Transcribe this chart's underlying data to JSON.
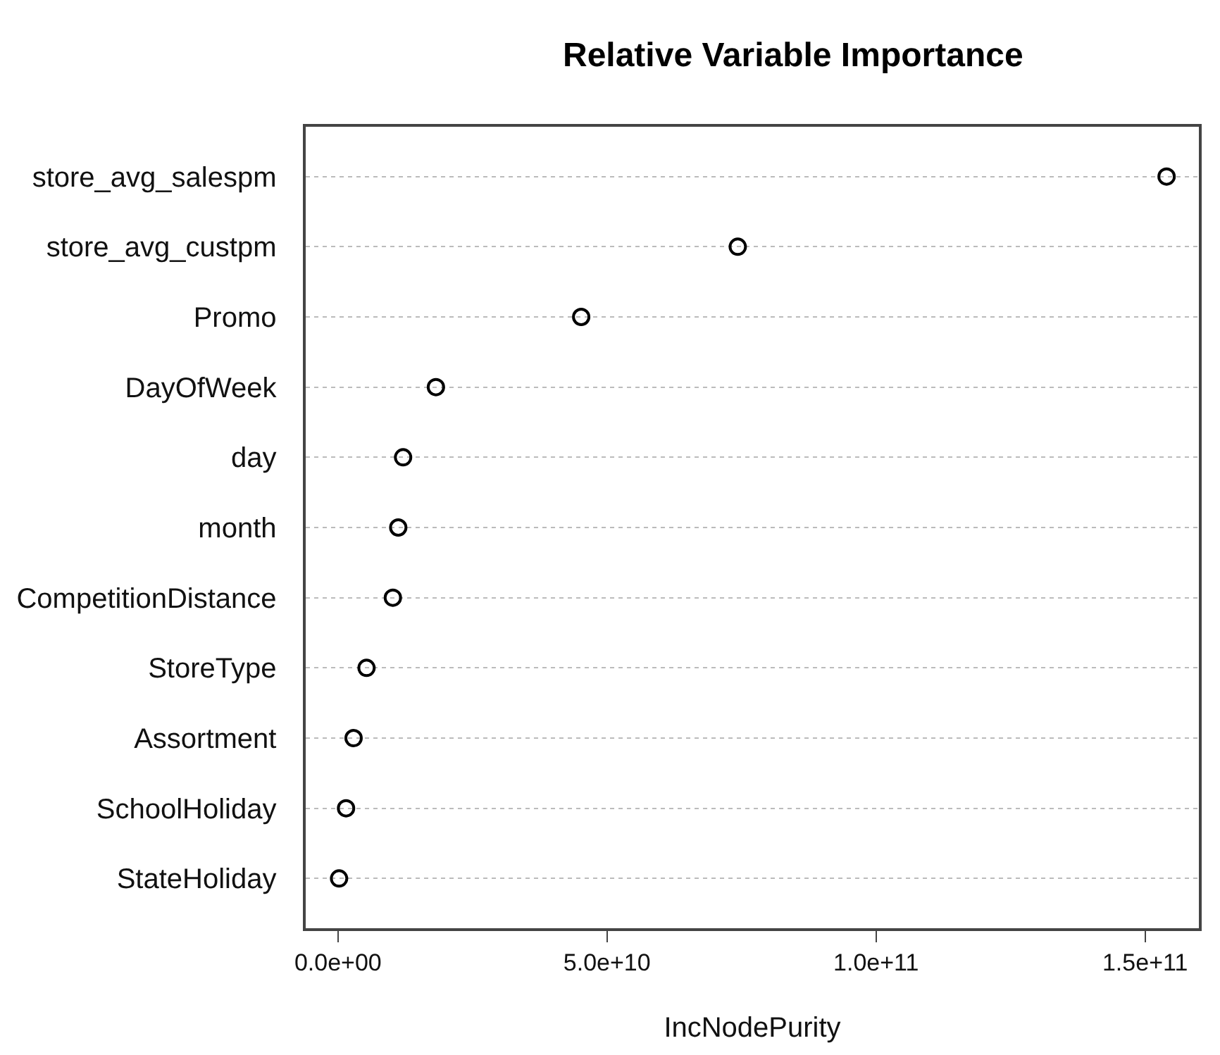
{
  "chart_data": {
    "type": "scatter",
    "title": "Relative Variable Importance",
    "xlabel": "IncNodePurity",
    "categories": [
      "store_avg_salespm",
      "store_avg_custpm",
      "Promo",
      "DayOfWeek",
      "day",
      "month",
      "CompetitionDistance",
      "StoreType",
      "Assortment",
      "SchoolHoliday",
      "StateHoliday"
    ],
    "orientation": "horizontal",
    "values": [
      154000000000,
      74300000000,
      45200000000,
      18200000000,
      12100000000,
      11200000000,
      10200000000,
      5300000000,
      2900000000,
      1500000000,
      200000000
    ],
    "color": "#000000",
    "marker": "circle",
    "grid": "y",
    "legend": false,
    "xlim": [
      -6000000000,
      160000000000
    ],
    "xticks": [
      {
        "value": 0,
        "label": "0.0e+00"
      },
      {
        "value": 50000000000,
        "label": "5.0e+10"
      },
      {
        "value": 100000000000,
        "label": "1.0e+11"
      },
      {
        "value": 150000000000,
        "label": "1.5e+11"
      }
    ]
  }
}
